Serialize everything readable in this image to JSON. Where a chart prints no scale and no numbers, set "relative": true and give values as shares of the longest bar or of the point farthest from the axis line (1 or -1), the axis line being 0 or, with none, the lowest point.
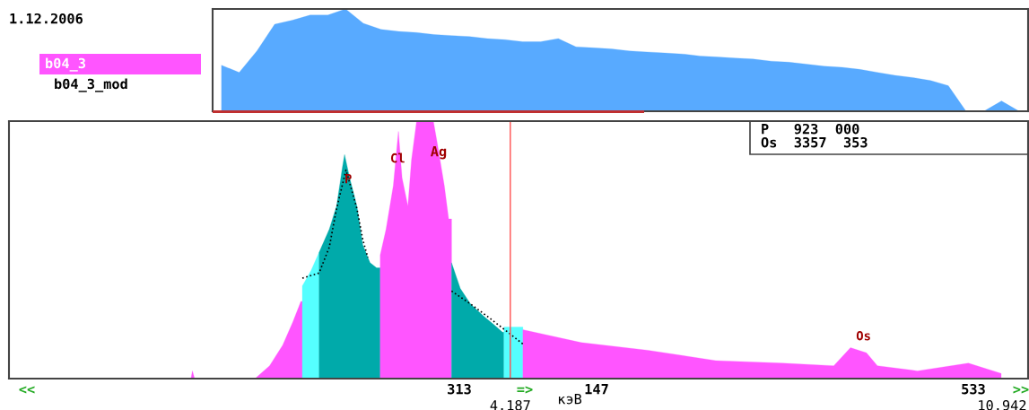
{
  "chart_data": [
    {
      "type": "area",
      "relative": true,
      "tick_labels": false,
      "categories": [
        null,
        null,
        null,
        null,
        null,
        null,
        null,
        null,
        null,
        null,
        null,
        null,
        null,
        null,
        null,
        null,
        null,
        null,
        null,
        null,
        null,
        null,
        null,
        null,
        null,
        null,
        null,
        null,
        null,
        null,
        null,
        null,
        null,
        null,
        null,
        null,
        null,
        null,
        null,
        null,
        null,
        null,
        null,
        null,
        null,
        null
      ],
      "values": [
        0.45,
        0.38,
        0.59,
        0.85,
        0.89,
        0.94,
        0.94,
        1.0,
        0.86,
        0.8,
        0.78,
        0.77,
        0.75,
        0.74,
        0.73,
        0.71,
        0.7,
        0.68,
        0.68,
        0.71,
        0.63,
        0.62,
        0.61,
        0.59,
        0.58,
        0.57,
        0.56,
        0.54,
        0.53,
        0.52,
        0.51,
        0.49,
        0.48,
        0.46,
        0.44,
        0.43,
        0.41,
        0.38,
        0.35,
        0.33,
        0.3,
        0.25,
        0,
        0,
        0.1,
        0
      ],
      "color": "#58aaff",
      "annotations": [
        "1.12.2006",
        "b04_3",
        "b04_3_mod"
      ]
    },
    {
      "type": "area",
      "relative": true,
      "tick_labels": "x",
      "xlabel": "кэВ",
      "xlim": [
        -2.7,
        11.3
      ],
      "xticks": [
        {
          "value": 4.187,
          "label": "4.187"
        },
        {
          "value": 10.942,
          "label": "10.942"
        }
      ],
      "ref_lines": [
        {
          "axis": "x",
          "value": 4.187,
          "color": "#ff5050"
        }
      ],
      "series": [
        {
          "color": "#ff55ff",
          "x": [
            -0.2,
            -0.18,
            -0.15,
            0.68,
            0.88,
            1.06,
            1.2,
            1.31,
            1.33
          ],
          "values": [
            0,
            0.03,
            0,
            0,
            0.05,
            0.13,
            0.22,
            0.3,
            0.3
          ]
        },
        {
          "color": "#55ffff",
          "x": [
            1.33,
            1.45,
            1.56
          ],
          "values": [
            0.36,
            0.42,
            0.49
          ]
        },
        {
          "color": "#00aaaa",
          "x": [
            1.56,
            1.7,
            1.8,
            1.88,
            1.91,
            1.98,
            2.08,
            2.16,
            2.26,
            2.35,
            2.4
          ],
          "values": [
            0.49,
            0.58,
            0.67,
            0.82,
            0.87,
            0.78,
            0.67,
            0.52,
            0.45,
            0.43,
            0.43
          ]
        },
        {
          "color": "#ff55ff",
          "x": [
            2.4,
            2.48,
            2.58,
            2.65,
            2.7,
            2.78,
            2.83,
            2.9,
            3.13,
            3.18,
            3.28,
            3.34,
            3.38
          ],
          "values": [
            0.48,
            0.58,
            0.75,
            0.96,
            0.78,
            0.67,
            0.85,
            1.0,
            1.0,
            0.92,
            0.75,
            0.62,
            0.62
          ]
        },
        {
          "color": "#00aaaa",
          "x": [
            3.38,
            3.5,
            3.64,
            3.83,
            3.96,
            4.08,
            4.1
          ],
          "values": [
            0.45,
            0.35,
            0.29,
            0.24,
            0.21,
            0.18,
            0.18
          ]
        },
        {
          "color": "#55ffff",
          "x": [
            4.1,
            4.36
          ],
          "values": [
            0.2,
            0.2
          ]
        },
        {
          "color": "#ff55ff",
          "x": [
            4.36,
            5.16,
            6.08,
            7.01,
            7.93,
            8.63,
            8.86,
            9.08,
            9.23,
            9.78,
            10.48,
            10.93
          ],
          "values": [
            0.19,
            0.14,
            0.11,
            0.07,
            0.06,
            0.05,
            0.12,
            0.1,
            0.05,
            0.03,
            0.06,
            0.02
          ]
        },
        {
          "type": "line",
          "color": "#000000",
          "line_style": "dotted",
          "x": [
            1.33,
            1.56,
            1.7,
            1.8,
            1.93,
            2.08,
            2.16,
            2.23,
            2.8,
            3.38,
            3.64,
            3.88,
            4.2,
            4.38
          ],
          "values": [
            0.39,
            0.41,
            0.51,
            0.66,
            0.81,
            0.66,
            0.54,
            0.47,
            null,
            0.34,
            0.29,
            0.24,
            0.17,
            0.13
          ]
        }
      ],
      "annotations": [
        {
          "text": "P",
          "x": 1.96,
          "y": 0.72
        },
        {
          "text": "Cl",
          "x": 2.64,
          "y": 0.8
        },
        {
          "text": "Os",
          "x": 9.04,
          "y": 0.11
        },
        "Ag",
        "P   923  000",
        "Os  3357  353",
        "313",
        "147",
        "533",
        "<<",
        "=>",
        ">>"
      ]
    }
  ]
}
